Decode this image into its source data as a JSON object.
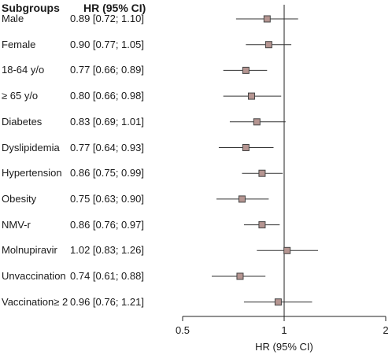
{
  "headers": {
    "subgroups": "Subgroups",
    "hr": "HR (95% CI)"
  },
  "chart_data": {
    "type": "forest",
    "xlabel": "HR (95% CI)",
    "x_scale": "log2",
    "xlim": [
      0.5,
      2
    ],
    "x_ticks": [
      "0.5",
      "1",
      "2"
    ],
    "reference_line": 1,
    "marker_color": "#b59591",
    "rows": [
      {
        "label": "Male",
        "ci_text": "0.89 [0.72; 1.10]",
        "hr": 0.89,
        "lower": 0.72,
        "upper": 1.1
      },
      {
        "label": "Female",
        "ci_text": "0.90 [0.77; 1.05]",
        "hr": 0.9,
        "lower": 0.77,
        "upper": 1.05
      },
      {
        "label": "18-64 y/o",
        "ci_text": "0.77 [0.66; 0.89]",
        "hr": 0.77,
        "lower": 0.66,
        "upper": 0.89
      },
      {
        "label": "≥ 65 y/o",
        "ci_text": "0.80 [0.66; 0.98]",
        "hr": 0.8,
        "lower": 0.66,
        "upper": 0.98
      },
      {
        "label": "Diabetes",
        "ci_text": "0.83 [0.69; 1.01]",
        "hr": 0.83,
        "lower": 0.69,
        "upper": 1.01
      },
      {
        "label": "Dyslipidemia",
        "ci_text": "0.77 [0.64; 0.93]",
        "hr": 0.77,
        "lower": 0.64,
        "upper": 0.93
      },
      {
        "label": "Hypertension",
        "ci_text": "0.86 [0.75; 0.99]",
        "hr": 0.86,
        "lower": 0.75,
        "upper": 0.99
      },
      {
        "label": "Obesity",
        "ci_text": "0.75 [0.63; 0.90]",
        "hr": 0.75,
        "lower": 0.63,
        "upper": 0.9
      },
      {
        "label": "NMV-r",
        "ci_text": "0.86 [0.76; 0.97]",
        "hr": 0.86,
        "lower": 0.76,
        "upper": 0.97
      },
      {
        "label": "Molnupiravir",
        "ci_text": "1.02 [0.83; 1.26]",
        "hr": 1.02,
        "lower": 0.83,
        "upper": 1.26
      },
      {
        "label": "Unvaccination",
        "ci_text": "0.74 [0.61; 0.88]",
        "hr": 0.74,
        "lower": 0.61,
        "upper": 0.88
      },
      {
        "label": "Vaccination≥ 2",
        "ci_text": "0.96 [0.76; 1.21]",
        "hr": 0.96,
        "lower": 0.76,
        "upper": 1.21
      }
    ]
  }
}
